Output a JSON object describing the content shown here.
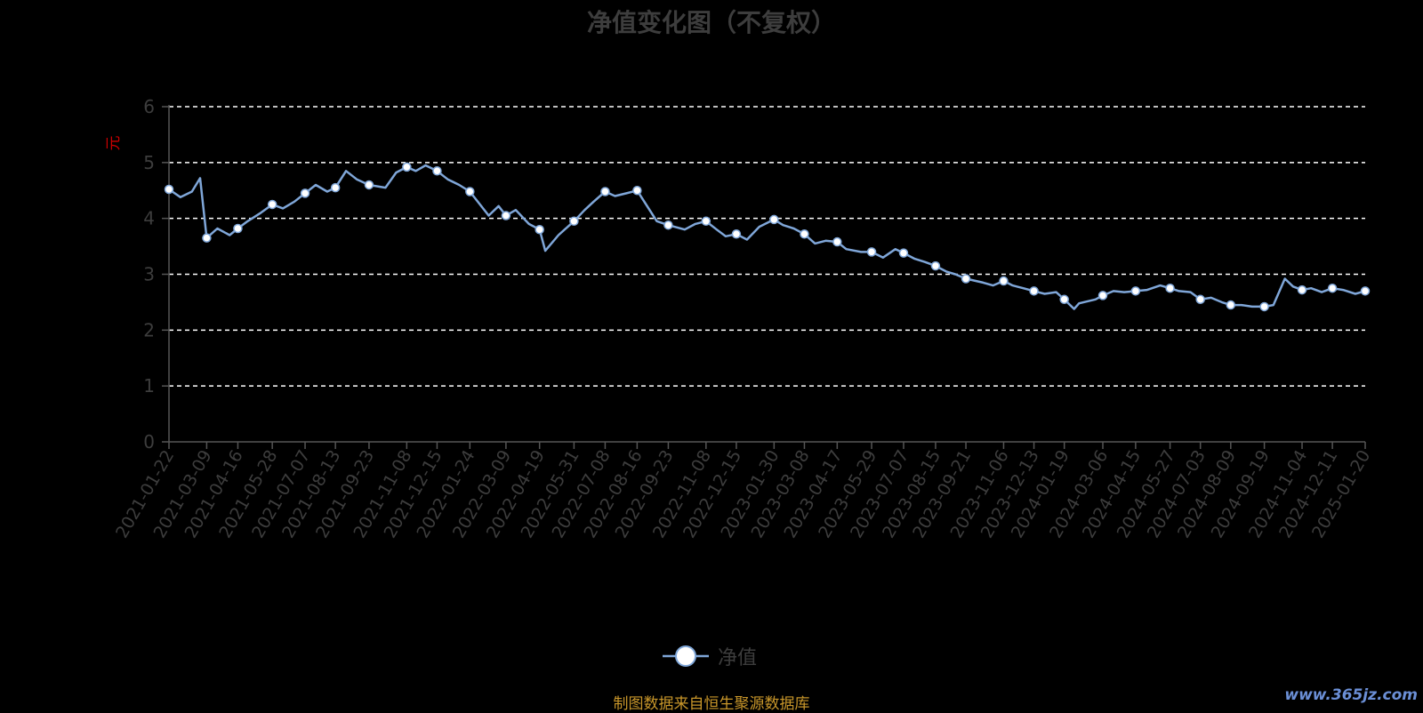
{
  "colors": {
    "line": "#7fa6d8",
    "marker": "#ffffff",
    "grid": "#ffffff",
    "axis": "#555555",
    "tick_text": "#3d3d3d",
    "unit": "#cc0000",
    "source": "#c8962a",
    "watermark": "#6b8fd6"
  },
  "footer": {
    "source": "制图数据来自恒生聚源数据库",
    "watermark": "www.365jz.com"
  },
  "chart_data": {
    "type": "line",
    "title": "净值变化图（不复权）",
    "ylabel": "元",
    "ylim": [
      0,
      6
    ],
    "yticks": [
      0,
      1,
      2,
      3,
      4,
      5,
      6
    ],
    "grid": true,
    "legend_position": "bottom-center",
    "x_tick_labels": [
      "2021-01-22",
      "2021-03-09",
      "2021-04-16",
      "2021-05-28",
      "2021-07-07",
      "2021-08-13",
      "2021-09-23",
      "2021-11-08",
      "2021-12-15",
      "2022-01-24",
      "2022-03-09",
      "2022-04-19",
      "2022-05-31",
      "2022-07-08",
      "2022-08-16",
      "2022-09-23",
      "2022-11-08",
      "2022-12-15",
      "2023-01-30",
      "2023-03-08",
      "2023-04-17",
      "2023-05-29",
      "2023-07-07",
      "2023-08-15",
      "2023-09-21",
      "2023-11-06",
      "2023-12-13",
      "2024-01-19",
      "2024-03-06",
      "2024-04-15",
      "2024-05-27",
      "2024-07-03",
      "2024-08-09",
      "2024-09-19",
      "2024-11-04",
      "2024-12-11",
      "2025-01-20"
    ],
    "series": [
      {
        "name": "净值",
        "x": [
          "2021-01-22",
          "2021-02-05",
          "2021-02-19",
          "2021-03-01",
          "2021-03-09",
          "2021-03-22",
          "2021-04-06",
          "2021-04-16",
          "2021-04-28",
          "2021-05-14",
          "2021-05-28",
          "2021-06-10",
          "2021-06-24",
          "2021-07-07",
          "2021-07-20",
          "2021-08-03",
          "2021-08-13",
          "2021-08-26",
          "2021-09-08",
          "2021-09-23",
          "2021-10-13",
          "2021-10-26",
          "2021-11-08",
          "2021-11-19",
          "2021-12-01",
          "2021-12-15",
          "2021-12-28",
          "2022-01-11",
          "2022-01-24",
          "2022-02-16",
          "2022-02-28",
          "2022-03-09",
          "2022-03-21",
          "2022-04-06",
          "2022-04-19",
          "2022-04-26",
          "2022-05-12",
          "2022-05-31",
          "2022-06-13",
          "2022-06-24",
          "2022-07-08",
          "2022-07-20",
          "2022-08-03",
          "2022-08-16",
          "2022-08-29",
          "2022-09-09",
          "2022-09-23",
          "2022-10-13",
          "2022-10-26",
          "2022-11-08",
          "2022-11-21",
          "2022-12-02",
          "2022-12-15",
          "2022-12-28",
          "2023-01-12",
          "2023-01-30",
          "2023-02-10",
          "2023-02-23",
          "2023-03-08",
          "2023-03-21",
          "2023-04-03",
          "2023-04-17",
          "2023-04-28",
          "2023-05-16",
          "2023-05-29",
          "2023-06-12",
          "2023-06-27",
          "2023-07-07",
          "2023-07-20",
          "2023-08-02",
          "2023-08-15",
          "2023-08-28",
          "2023-09-08",
          "2023-09-21",
          "2023-10-12",
          "2023-10-24",
          "2023-11-06",
          "2023-11-17",
          "2023-11-30",
          "2023-12-13",
          "2023-12-26",
          "2024-01-09",
          "2024-01-19",
          "2024-01-31",
          "2024-02-06",
          "2024-02-26",
          "2024-03-06",
          "2024-03-19",
          "2024-04-01",
          "2024-04-15",
          "2024-04-29",
          "2024-05-15",
          "2024-05-27",
          "2024-06-07",
          "2024-06-21",
          "2024-07-03",
          "2024-07-16",
          "2024-07-29",
          "2024-08-09",
          "2024-08-22",
          "2024-09-04",
          "2024-09-19",
          "2024-09-30",
          "2024-10-14",
          "2024-10-24",
          "2024-11-04",
          "2024-11-15",
          "2024-11-28",
          "2024-12-11",
          "2024-12-24",
          "2025-01-08",
          "2025-01-20"
        ],
        "values": [
          4.52,
          4.38,
          4.48,
          4.72,
          3.65,
          3.82,
          3.7,
          3.82,
          3.95,
          4.1,
          4.25,
          4.18,
          4.3,
          4.45,
          4.6,
          4.48,
          4.55,
          4.85,
          4.7,
          4.6,
          4.55,
          4.82,
          4.92,
          4.85,
          4.95,
          4.85,
          4.7,
          4.6,
          4.48,
          4.05,
          4.22,
          4.05,
          4.15,
          3.9,
          3.8,
          3.42,
          3.7,
          3.95,
          4.15,
          4.3,
          4.48,
          4.4,
          4.45,
          4.5,
          4.2,
          3.95,
          3.88,
          3.8,
          3.9,
          3.95,
          3.8,
          3.68,
          3.72,
          3.62,
          3.85,
          3.98,
          3.88,
          3.82,
          3.72,
          3.55,
          3.6,
          3.58,
          3.45,
          3.4,
          3.4,
          3.3,
          3.45,
          3.38,
          3.28,
          3.22,
          3.15,
          3.05,
          3.0,
          2.92,
          2.85,
          2.8,
          2.88,
          2.8,
          2.75,
          2.7,
          2.65,
          2.68,
          2.55,
          2.38,
          2.48,
          2.55,
          2.62,
          2.7,
          2.68,
          2.7,
          2.72,
          2.8,
          2.75,
          2.7,
          2.68,
          2.55,
          2.58,
          2.5,
          2.45,
          2.45,
          2.42,
          2.42,
          2.45,
          2.92,
          2.78,
          2.72,
          2.75,
          2.68,
          2.75,
          2.72,
          2.65,
          2.7
        ],
        "markers": [
          "2021-01-22",
          "2021-03-09",
          "2021-04-16",
          "2021-05-28",
          "2021-07-07",
          "2021-08-13",
          "2021-09-23",
          "2021-11-08",
          "2021-12-15",
          "2022-01-24",
          "2022-03-09",
          "2022-04-19",
          "2022-05-31",
          "2022-07-08",
          "2022-08-16",
          "2022-09-23",
          "2022-11-08",
          "2022-12-15",
          "2023-01-30",
          "2023-03-08",
          "2023-04-17",
          "2023-05-29",
          "2023-07-07",
          "2023-08-15",
          "2023-09-21",
          "2023-11-06",
          "2023-12-13",
          "2024-01-19",
          "2024-03-06",
          "2024-04-15",
          "2024-05-27",
          "2024-07-03",
          "2024-08-09",
          "2024-09-19",
          "2024-11-04",
          "2024-12-11",
          "2025-01-20"
        ]
      }
    ]
  }
}
